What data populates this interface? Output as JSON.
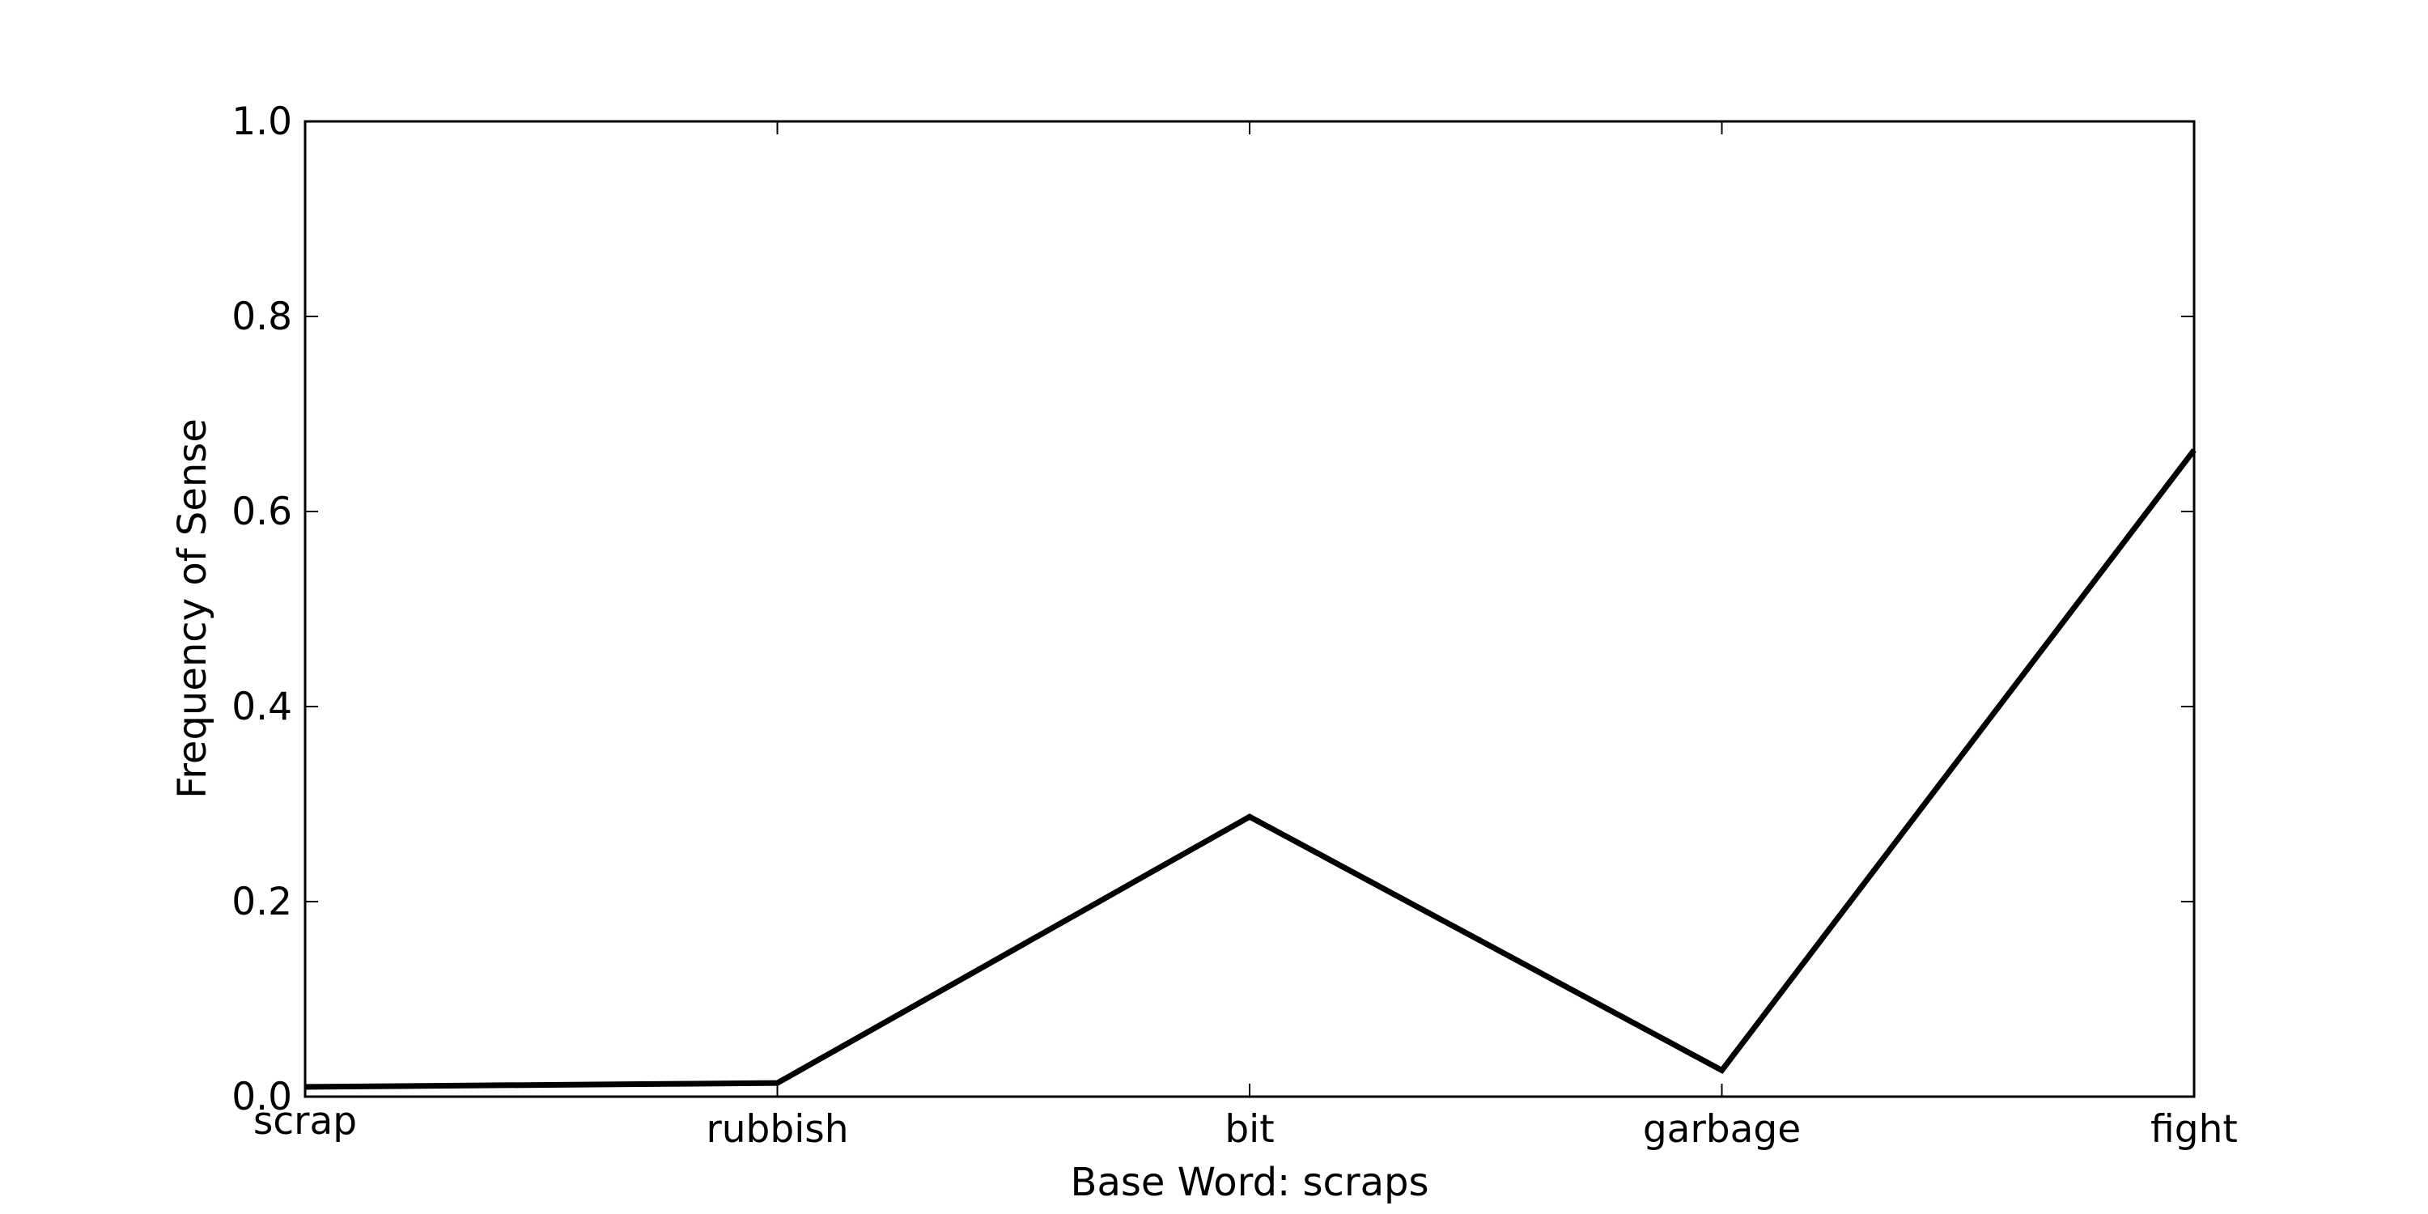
{
  "chart_data": {
    "type": "line",
    "title": "",
    "xlabel": "Base Word: scraps",
    "ylabel": "Frequency of Sense",
    "categories": [
      "scrap",
      "rubbish",
      "bit",
      "garbage",
      "fight"
    ],
    "series": [
      {
        "values": [
          0.01,
          0.014,
          0.287,
          0.027,
          0.663
        ]
      }
    ],
    "ylim": [
      0,
      1.0
    ],
    "yticks": [
      "0.0",
      "0.2",
      "0.4",
      "0.6",
      "0.8",
      "1.0"
    ],
    "grid": false,
    "line_color": "#000000"
  }
}
